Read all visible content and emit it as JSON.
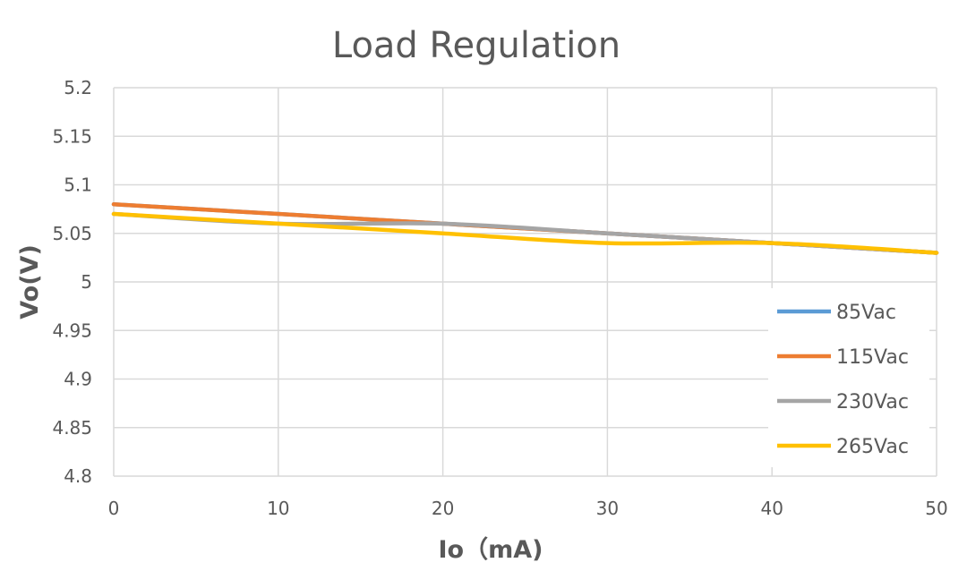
{
  "chart_data": {
    "type": "line",
    "title": "Load Regulation",
    "xlabel": "Io（mA)",
    "ylabel": "Vo(V)",
    "xlim": [
      0,
      50
    ],
    "ylim": [
      4.8,
      5.2
    ],
    "x": [
      0,
      10,
      20,
      30,
      40,
      50
    ],
    "xticks": [
      "0",
      "10",
      "20",
      "30",
      "40",
      "50"
    ],
    "yticks": [
      "4.8",
      "4.85",
      "4.9",
      "4.95",
      "5",
      "5.05",
      "5.1",
      "5.15",
      "5.2"
    ],
    "grid": true,
    "smooth": true,
    "legend_position": "right",
    "series": [
      {
        "name": "85Vac",
        "color": "#5b9bd5",
        "values": [
          5.08,
          5.07,
          5.06,
          5.05,
          5.04,
          5.03
        ]
      },
      {
        "name": "115Vac",
        "color": "#ed7d31",
        "values": [
          5.08,
          5.07,
          5.06,
          5.05,
          5.04,
          5.03
        ]
      },
      {
        "name": "230Vac",
        "color": "#a5a5a5",
        "values": [
          5.07,
          5.06,
          5.06,
          5.05,
          5.04,
          5.03
        ]
      },
      {
        "name": "265Vac",
        "color": "#ffc000",
        "values": [
          5.07,
          5.06,
          5.05,
          5.04,
          5.04,
          5.03
        ]
      }
    ]
  }
}
